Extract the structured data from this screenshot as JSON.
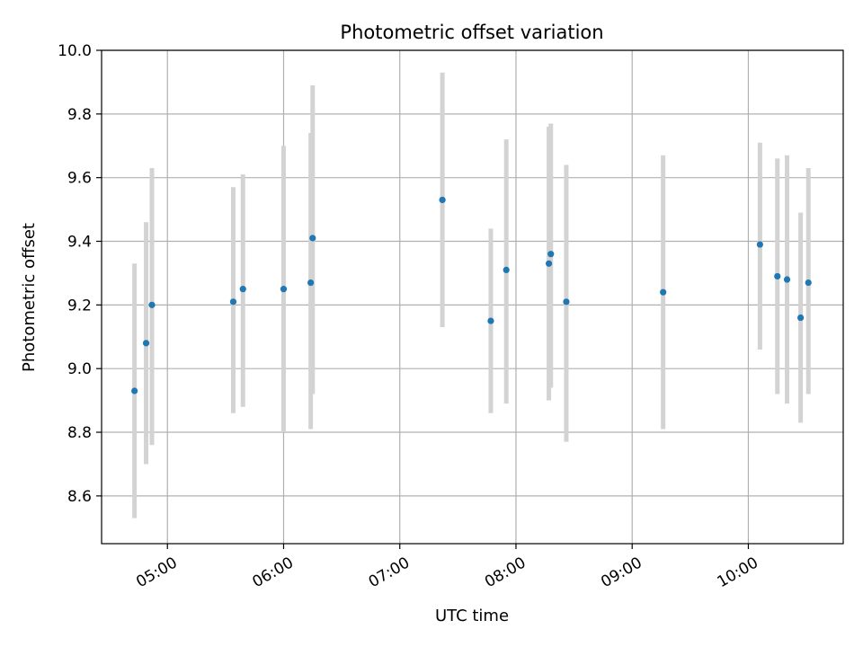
{
  "chart_data": {
    "type": "scatter",
    "title": "Photometric offset variation",
    "xlabel": "UTC time",
    "ylabel": "Photometric offset",
    "x_axis": "time",
    "xlim": [
      "04:26",
      "10:49"
    ],
    "ylim": [
      8.45,
      10.0
    ],
    "grid": true,
    "x_ticks": [
      "05:00",
      "06:00",
      "07:00",
      "08:00",
      "09:00",
      "10:00"
    ],
    "y_ticks": [
      "8.6",
      "8.8",
      "9.0",
      "9.2",
      "9.4",
      "9.6",
      "9.8",
      "10.0"
    ],
    "colors": {
      "marker": "#1f77b4",
      "errorbar": "#d3d3d3",
      "grid": "#b0b0b0"
    },
    "points": [
      {
        "x": "04:43",
        "y": 8.93,
        "yerr_low": 8.53,
        "yerr_high": 9.33
      },
      {
        "x": "04:49",
        "y": 9.08,
        "yerr_low": 8.7,
        "yerr_high": 9.46
      },
      {
        "x": "04:52",
        "y": 9.2,
        "yerr_low": 8.76,
        "yerr_high": 9.63
      },
      {
        "x": "05:34",
        "y": 9.21,
        "yerr_low": 8.86,
        "yerr_high": 9.57
      },
      {
        "x": "05:39",
        "y": 9.25,
        "yerr_low": 8.88,
        "yerr_high": 9.61
      },
      {
        "x": "06:00",
        "y": 9.25,
        "yerr_low": 8.8,
        "yerr_high": 9.7
      },
      {
        "x": "06:14",
        "y": 9.27,
        "yerr_low": 8.81,
        "yerr_high": 9.74
      },
      {
        "x": "06:15",
        "y": 9.41,
        "yerr_low": 8.92,
        "yerr_high": 9.89
      },
      {
        "x": "07:22",
        "y": 9.53,
        "yerr_low": 9.13,
        "yerr_high": 9.93
      },
      {
        "x": "07:47",
        "y": 9.15,
        "yerr_low": 8.86,
        "yerr_high": 9.44
      },
      {
        "x": "07:55",
        "y": 9.31,
        "yerr_low": 8.89,
        "yerr_high": 9.72
      },
      {
        "x": "08:17",
        "y": 9.33,
        "yerr_low": 8.9,
        "yerr_high": 9.76
      },
      {
        "x": "08:18",
        "y": 9.36,
        "yerr_low": 8.94,
        "yerr_high": 9.77
      },
      {
        "x": "08:26",
        "y": 9.21,
        "yerr_low": 8.77,
        "yerr_high": 9.64
      },
      {
        "x": "09:16",
        "y": 9.24,
        "yerr_low": 8.81,
        "yerr_high": 9.67
      },
      {
        "x": "10:06",
        "y": 9.39,
        "yerr_low": 9.06,
        "yerr_high": 9.71
      },
      {
        "x": "10:15",
        "y": 9.29,
        "yerr_low": 8.92,
        "yerr_high": 9.66
      },
      {
        "x": "10:20",
        "y": 9.28,
        "yerr_low": 8.89,
        "yerr_high": 9.67
      },
      {
        "x": "10:27",
        "y": 9.16,
        "yerr_low": 8.83,
        "yerr_high": 9.49
      },
      {
        "x": "10:31",
        "y": 9.27,
        "yerr_low": 8.92,
        "yerr_high": 9.63
      }
    ]
  }
}
